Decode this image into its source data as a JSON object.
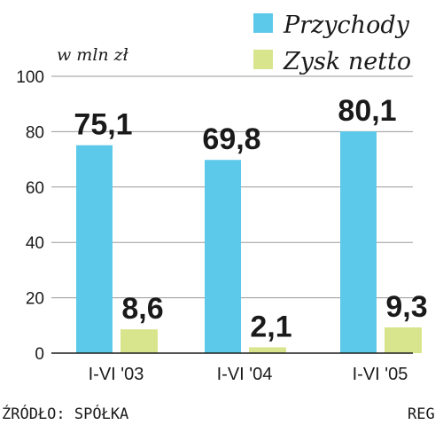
{
  "chart_data": {
    "type": "bar",
    "unit_label": "w mln zł",
    "categories": [
      "I-VI '03",
      "I-VI '04",
      "I-VI '05"
    ],
    "series": [
      {
        "name": "Przychody",
        "values": [
          75.1,
          69.8,
          80.1
        ],
        "labels": [
          "75,1",
          "69,8",
          "80,1"
        ],
        "color": "#5dc9ea"
      },
      {
        "name": "Zysk netto",
        "values": [
          8.6,
          2.1,
          9.3
        ],
        "labels": [
          "8,6",
          "2,1",
          "9,3"
        ],
        "color": "#d9e58c"
      }
    ],
    "yticks": [
      0,
      20,
      40,
      60,
      80,
      100
    ],
    "ylim": [
      0,
      100
    ],
    "grid": true,
    "legend_position": "top-right"
  },
  "source": "ŹRÓDŁO: SPÓŁKA",
  "credit": "REG"
}
